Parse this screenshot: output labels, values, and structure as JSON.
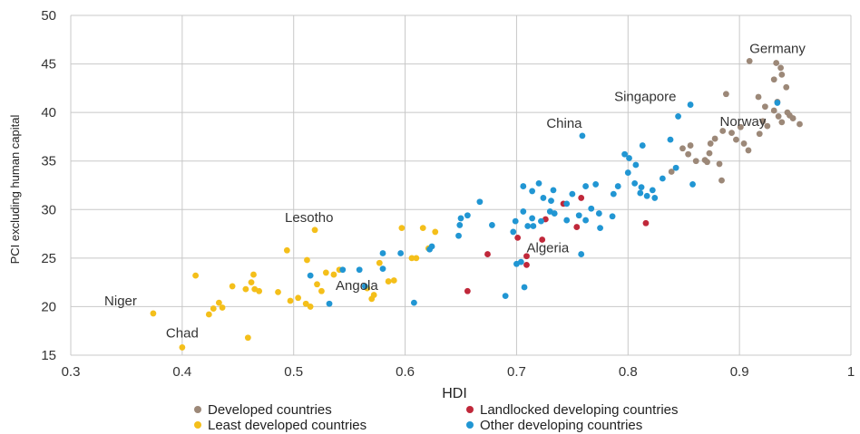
{
  "chart_data": {
    "type": "scatter",
    "xlabel": "HDI",
    "ylabel": "PCI excluding human capital",
    "xlim": [
      0.3,
      1.0
    ],
    "ylim": [
      15,
      50
    ],
    "xticks": [
      0.3,
      0.4,
      0.5,
      0.6,
      0.7,
      0.8,
      0.9,
      1.0
    ],
    "xtick_labels": [
      "0.3",
      "0.4",
      "0.5",
      "0.6",
      "0.7",
      "0.8",
      "0.9",
      "1"
    ],
    "yticks": [
      15,
      20,
      25,
      30,
      35,
      40,
      45,
      50
    ],
    "ytick_labels": [
      "15",
      "20",
      "25",
      "30",
      "35",
      "40",
      "45",
      "50"
    ],
    "grid": true,
    "legend_position": "bottom",
    "series": [
      {
        "name": "Developed countries",
        "color": "#9c8878",
        "points": [
          [
            0.909,
            45.3
          ],
          [
            0.933,
            45.1
          ],
          [
            0.937,
            44.6
          ],
          [
            0.938,
            43.9
          ],
          [
            0.931,
            43.4
          ],
          [
            0.942,
            42.6
          ],
          [
            0.888,
            41.9
          ],
          [
            0.917,
            41.6
          ],
          [
            0.934,
            41.1
          ],
          [
            0.923,
            40.6
          ],
          [
            0.931,
            40.2
          ],
          [
            0.943,
            40.0
          ],
          [
            0.935,
            39.6
          ],
          [
            0.948,
            39.4
          ],
          [
            0.945,
            39.7
          ],
          [
            0.938,
            39.0
          ],
          [
            0.921,
            39.1
          ],
          [
            0.925,
            38.6
          ],
          [
            0.954,
            38.8
          ],
          [
            0.901,
            38.5
          ],
          [
            0.885,
            38.1
          ],
          [
            0.893,
            37.9
          ],
          [
            0.878,
            37.3
          ],
          [
            0.874,
            36.8
          ],
          [
            0.897,
            37.2
          ],
          [
            0.918,
            37.8
          ],
          [
            0.904,
            36.8
          ],
          [
            0.856,
            36.6
          ],
          [
            0.849,
            36.3
          ],
          [
            0.854,
            35.7
          ],
          [
            0.869,
            35.1
          ],
          [
            0.871,
            34.9
          ],
          [
            0.882,
            34.7
          ],
          [
            0.861,
            35.0
          ],
          [
            0.873,
            35.8
          ],
          [
            0.908,
            36.1
          ],
          [
            0.839,
            33.9
          ],
          [
            0.884,
            33.0
          ]
        ]
      },
      {
        "name": "Landlocked developing countries",
        "color": "#c0283a",
        "points": [
          [
            0.758,
            31.2
          ],
          [
            0.742,
            30.6
          ],
          [
            0.726,
            29.0
          ],
          [
            0.723,
            26.9
          ],
          [
            0.701,
            27.1
          ],
          [
            0.754,
            28.2
          ],
          [
            0.816,
            28.6
          ],
          [
            0.674,
            25.4
          ],
          [
            0.709,
            25.2
          ],
          [
            0.709,
            24.3
          ],
          [
            0.656,
            21.6
          ]
        ]
      },
      {
        "name": "Least developed countries",
        "color": "#f4bf1a",
        "points": [
          [
            0.519,
            27.9
          ],
          [
            0.616,
            28.1
          ],
          [
            0.597,
            28.1
          ],
          [
            0.627,
            27.7
          ],
          [
            0.494,
            25.8
          ],
          [
            0.621,
            26.0
          ],
          [
            0.606,
            25.0
          ],
          [
            0.61,
            25.0
          ],
          [
            0.512,
            24.8
          ],
          [
            0.577,
            24.5
          ],
          [
            0.541,
            23.8
          ],
          [
            0.529,
            23.5
          ],
          [
            0.412,
            23.2
          ],
          [
            0.464,
            23.3
          ],
          [
            0.462,
            22.5
          ],
          [
            0.585,
            22.6
          ],
          [
            0.59,
            22.7
          ],
          [
            0.465,
            21.8
          ],
          [
            0.469,
            21.6
          ],
          [
            0.457,
            21.8
          ],
          [
            0.486,
            21.5
          ],
          [
            0.445,
            22.1
          ],
          [
            0.525,
            21.6
          ],
          [
            0.572,
            21.2
          ],
          [
            0.497,
            20.6
          ],
          [
            0.511,
            20.3
          ],
          [
            0.515,
            20.0
          ],
          [
            0.504,
            20.9
          ],
          [
            0.57,
            20.8
          ],
          [
            0.433,
            20.4
          ],
          [
            0.428,
            19.8
          ],
          [
            0.436,
            19.9
          ],
          [
            0.424,
            19.2
          ],
          [
            0.374,
            19.3
          ],
          [
            0.459,
            16.8
          ],
          [
            0.4,
            15.8
          ],
          [
            0.536,
            23.3
          ],
          [
            0.521,
            22.3
          ],
          [
            0.566,
            21.9
          ]
        ]
      },
      {
        "name": "Other developing countries",
        "color": "#2196d3",
        "points": [
          [
            0.759,
            37.6
          ],
          [
            0.856,
            40.8
          ],
          [
            0.845,
            39.6
          ],
          [
            0.934,
            41.0
          ],
          [
            0.813,
            36.6
          ],
          [
            0.838,
            37.2
          ],
          [
            0.797,
            35.7
          ],
          [
            0.801,
            35.3
          ],
          [
            0.807,
            34.6
          ],
          [
            0.843,
            34.3
          ],
          [
            0.8,
            33.8
          ],
          [
            0.831,
            33.2
          ],
          [
            0.806,
            32.7
          ],
          [
            0.812,
            32.3
          ],
          [
            0.791,
            32.4
          ],
          [
            0.822,
            32.0
          ],
          [
            0.858,
            32.6
          ],
          [
            0.824,
            31.2
          ],
          [
            0.817,
            31.4
          ],
          [
            0.811,
            31.7
          ],
          [
            0.771,
            32.6
          ],
          [
            0.787,
            31.6
          ],
          [
            0.762,
            32.4
          ],
          [
            0.75,
            31.6
          ],
          [
            0.733,
            32.0
          ],
          [
            0.72,
            32.7
          ],
          [
            0.714,
            31.9
          ],
          [
            0.706,
            32.4
          ],
          [
            0.724,
            31.2
          ],
          [
            0.731,
            30.9
          ],
          [
            0.745,
            30.6
          ],
          [
            0.767,
            30.1
          ],
          [
            0.774,
            29.6
          ],
          [
            0.756,
            29.4
          ],
          [
            0.73,
            29.8
          ],
          [
            0.706,
            29.8
          ],
          [
            0.714,
            29.1
          ],
          [
            0.722,
            28.8
          ],
          [
            0.745,
            28.9
          ],
          [
            0.762,
            28.9
          ],
          [
            0.775,
            28.1
          ],
          [
            0.786,
            29.3
          ],
          [
            0.734,
            29.6
          ],
          [
            0.667,
            30.8
          ],
          [
            0.656,
            29.4
          ],
          [
            0.65,
            29.1
          ],
          [
            0.649,
            28.4
          ],
          [
            0.678,
            28.4
          ],
          [
            0.699,
            28.8
          ],
          [
            0.71,
            28.3
          ],
          [
            0.715,
            28.3
          ],
          [
            0.697,
            27.7
          ],
          [
            0.648,
            27.3
          ],
          [
            0.624,
            26.2
          ],
          [
            0.622,
            25.9
          ],
          [
            0.596,
            25.5
          ],
          [
            0.58,
            25.5
          ],
          [
            0.559,
            23.8
          ],
          [
            0.544,
            23.8
          ],
          [
            0.515,
            23.2
          ],
          [
            0.58,
            23.9
          ],
          [
            0.564,
            22.1
          ],
          [
            0.532,
            20.3
          ],
          [
            0.608,
            20.4
          ],
          [
            0.69,
            21.1
          ],
          [
            0.758,
            25.4
          ],
          [
            0.7,
            24.4
          ],
          [
            0.707,
            22.0
          ],
          [
            0.704,
            24.6
          ]
        ]
      }
    ],
    "annotations": [
      {
        "text": "Germany",
        "x": 0.909,
        "y": 45.3
      },
      {
        "text": "Singapore",
        "x": 0.856,
        "y": 40.8
      },
      {
        "text": "Norway",
        "x": 0.954,
        "y": 38.8
      },
      {
        "text": "China",
        "x": 0.759,
        "y": 37.6
      },
      {
        "text": "Lesotho",
        "x": 0.519,
        "y": 27.9
      },
      {
        "text": "Algeria",
        "x": 0.709,
        "y": 25.2
      },
      {
        "text": "Niger",
        "x": 0.374,
        "y": 19.3
      },
      {
        "text": "Angola",
        "x": 0.58,
        "y": 22.1
      },
      {
        "text": "Chad",
        "x": 0.4,
        "y": 15.8
      }
    ]
  }
}
